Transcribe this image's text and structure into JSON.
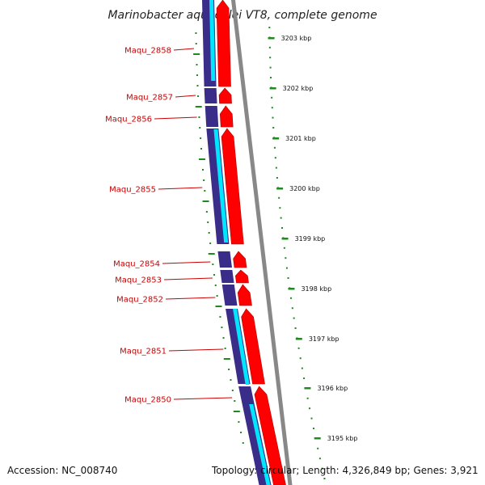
{
  "title": "Marinobacter aquaeolei VT8, complete genome",
  "accession": "Accession: NC_008740",
  "topology": "Topology: circular; Length: 4,326,849 bp; Genes: 3,921",
  "colors": {
    "cds_forward": "#ff0000",
    "cds_backward_outline": "#3a2d8a",
    "orf": "#00e6ff",
    "backbone": "#888888",
    "gene_label": "#cc0000",
    "gc_skew": "#1f8a1f"
  },
  "genes": [
    {
      "label": "Maqu_2858"
    },
    {
      "label": "Maqu_2857"
    },
    {
      "label": "Maqu_2856"
    },
    {
      "label": "Maqu_2855"
    },
    {
      "label": "Maqu_2854"
    },
    {
      "label": "Maqu_2853"
    },
    {
      "label": "Maqu_2852"
    },
    {
      "label": "Maqu_2851"
    },
    {
      "label": "Maqu_2850"
    }
  ],
  "ticks": [
    {
      "label": "3203 kbp"
    },
    {
      "label": "3202 kbp"
    },
    {
      "label": "3201 kbp"
    },
    {
      "label": "3200 kbp"
    },
    {
      "label": "3199 kbp"
    },
    {
      "label": "3198 kbp"
    },
    {
      "label": "3197 kbp"
    },
    {
      "label": "3196 kbp"
    },
    {
      "label": "3195 kbp"
    }
  ]
}
